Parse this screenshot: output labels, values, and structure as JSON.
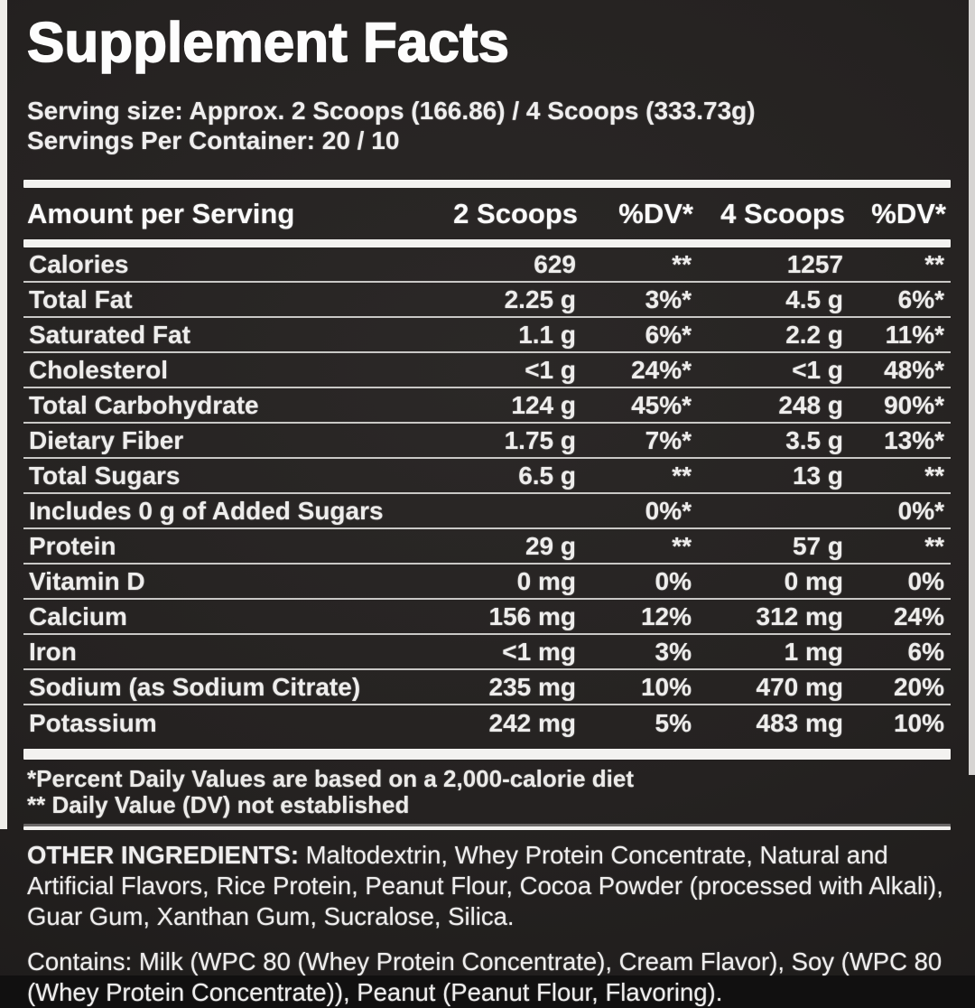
{
  "label": {
    "title": "Supplement Facts",
    "serving": {
      "serving_size_line": "Serving size: Approx. 2 Scoops (166.86) / 4 Scoops (333.73g)",
      "servings_per_container_line": "Servings Per Container: 20 / 10"
    },
    "table": {
      "headers": [
        "Amount per Serving",
        "2 Scoops",
        "%DV*",
        "4 Scoops",
        "%DV*"
      ],
      "rows": [
        [
          "Calories",
          "629",
          "**",
          "1257",
          "**"
        ],
        [
          "Total Fat",
          "2.25 g",
          "3%*",
          "4.5 g",
          "6%*"
        ],
        [
          "Saturated Fat",
          "1.1 g",
          "6%*",
          "2.2 g",
          "11%*"
        ],
        [
          "Cholesterol",
          "<1 g",
          "24%*",
          "<1 g",
          "48%*"
        ],
        [
          "Total Carbohydrate",
          "124 g",
          "45%*",
          "248 g",
          "90%*"
        ],
        [
          "Dietary Fiber",
          "1.75 g",
          "7%*",
          "3.5 g",
          "13%*"
        ],
        [
          "Total Sugars",
          "6.5 g",
          "**",
          "13 g",
          "**"
        ],
        [
          "Includes 0 g of Added Sugars",
          "",
          "0%*",
          "",
          "0%*"
        ],
        [
          "Protein",
          "29 g",
          "**",
          "57 g",
          "**"
        ],
        [
          "Vitamin D",
          "0 mg",
          "0%",
          "0 mg",
          "0%"
        ],
        [
          "Calcium",
          "156 mg",
          "12%",
          "312 mg",
          "24%"
        ],
        [
          "Iron",
          "<1 mg",
          "3%",
          "1 mg",
          "6%"
        ],
        [
          "Sodium (as Sodium Citrate)",
          "235 mg",
          "10%",
          "470 mg",
          "20%"
        ],
        [
          "Potassium",
          "242 mg",
          "5%",
          "483 mg",
          "10%"
        ]
      ]
    },
    "footnotes": {
      "daily_values": "*Percent Daily Values are based on a 2,000-calorie diet",
      "dv_not_established": "** Daily Value (DV) not established"
    },
    "other_ingredients": {
      "label": "OTHER INGREDIENTS:",
      "text": " Maltodextrin, Whey Protein Concentrate, Natural and Artificial Flavors, Rice Protein, Peanut Flour, Cocoa Powder (processed with Alkali), Guar Gum, Xanthan Gum, Sucralose, Silica."
    },
    "contains": "Contains: Milk (WPC 80 (Whey Protein Concentrate), Cream Flavor), Soy (WPC 80 (Whey Protein Concentrate)), Peanut (Peanut Flour, Flavoring).",
    "colors": {
      "background": "#252221",
      "text": "#f0efee",
      "divider": "#c9c8c6",
      "bar": "#f3f2f0",
      "left_edge": "#efede9",
      "right_edge": "#d6d4d2"
    }
  }
}
